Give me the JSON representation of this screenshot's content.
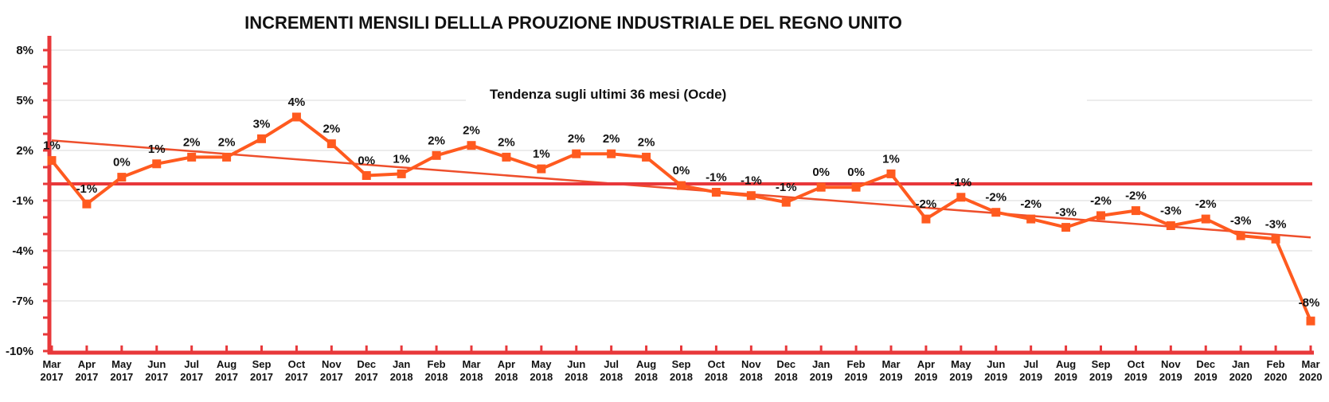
{
  "chart_data": {
    "type": "line",
    "title": "INCREMENTI MENSILI DELLLA PROUZIONE INDUSTRIALE DEL REGNO UNITO",
    "annotation": "Tendenza sugli ultimi 36 mesi (Ocde)",
    "xlabel": "",
    "ylabel": "",
    "ylim": [
      -10,
      9
    ],
    "yticks": [
      8,
      5,
      2,
      -1,
      -4,
      -7,
      -10
    ],
    "ytick_labels": [
      "8%",
      "5%",
      "2%",
      "-1%",
      "-4%",
      "-7%",
      "-10%"
    ],
    "reference_line": 0,
    "grid": true,
    "legend": "none",
    "colors": {
      "series": "#ff5a1f",
      "axis": "#e8383a",
      "trend": "#ee4f2c",
      "grid": "#d9d9d9"
    },
    "categories": [
      [
        "Mar",
        "2017"
      ],
      [
        "Apr",
        "2017"
      ],
      [
        "May",
        "2017"
      ],
      [
        "Jun",
        "2017"
      ],
      [
        "Jul",
        "2017"
      ],
      [
        "Aug",
        "2017"
      ],
      [
        "Sep",
        "2017"
      ],
      [
        "Oct",
        "2017"
      ],
      [
        "Nov",
        "2017"
      ],
      [
        "Dec",
        "2017"
      ],
      [
        "Jan",
        "2018"
      ],
      [
        "Feb",
        "2018"
      ],
      [
        "Mar",
        "2018"
      ],
      [
        "Apr",
        "2018"
      ],
      [
        "May",
        "2018"
      ],
      [
        "Jun",
        "2018"
      ],
      [
        "Jul",
        "2018"
      ],
      [
        "Aug",
        "2018"
      ],
      [
        "Sep",
        "2018"
      ],
      [
        "Oct",
        "2018"
      ],
      [
        "Nov",
        "2018"
      ],
      [
        "Dec",
        "2018"
      ],
      [
        "Jan",
        "2019"
      ],
      [
        "Feb",
        "2019"
      ],
      [
        "Mar",
        "2019"
      ],
      [
        "Apr",
        "2019"
      ],
      [
        "May",
        "2019"
      ],
      [
        "Jun",
        "2019"
      ],
      [
        "Jul",
        "2019"
      ],
      [
        "Aug",
        "2019"
      ],
      [
        "Sep",
        "2019"
      ],
      [
        "Oct",
        "2019"
      ],
      [
        "Nov",
        "2019"
      ],
      [
        "Dec",
        "2019"
      ],
      [
        "Jan",
        "2020"
      ],
      [
        "Feb",
        "2020"
      ],
      [
        "Mar",
        "2020"
      ]
    ],
    "series": [
      {
        "values": [
          1.4,
          -1.2,
          0.4,
          1.2,
          1.6,
          1.6,
          2.7,
          4.0,
          2.4,
          0.5,
          0.6,
          1.7,
          2.3,
          1.6,
          0.9,
          1.8,
          1.8,
          1.6,
          -0.1,
          -0.5,
          -0.7,
          -1.1,
          -0.2,
          -0.2,
          0.6,
          -2.1,
          -0.8,
          -1.7,
          -2.1,
          -2.6,
          -1.9,
          -1.6,
          -2.5,
          -2.1,
          -3.1,
          -3.3,
          -8.2
        ],
        "data_labels": [
          "1%",
          "-1%",
          "0%",
          "1%",
          "2%",
          "2%",
          "3%",
          "4%",
          "2%",
          "0%",
          "1%",
          "2%",
          "2%",
          "2%",
          "1%",
          "2%",
          "2%",
          "2%",
          "0%",
          "-1%",
          "-1%",
          "-1%",
          "0%",
          "0%",
          "1%",
          "-2%",
          "-1%",
          "-2%",
          "-2%",
          "-3%",
          "-2%",
          "-2%",
          "-3%",
          "-2%",
          "-3%",
          "-3%",
          "-8%"
        ]
      }
    ],
    "trendline": {
      "start": 2.6,
      "end": -3.2
    }
  }
}
